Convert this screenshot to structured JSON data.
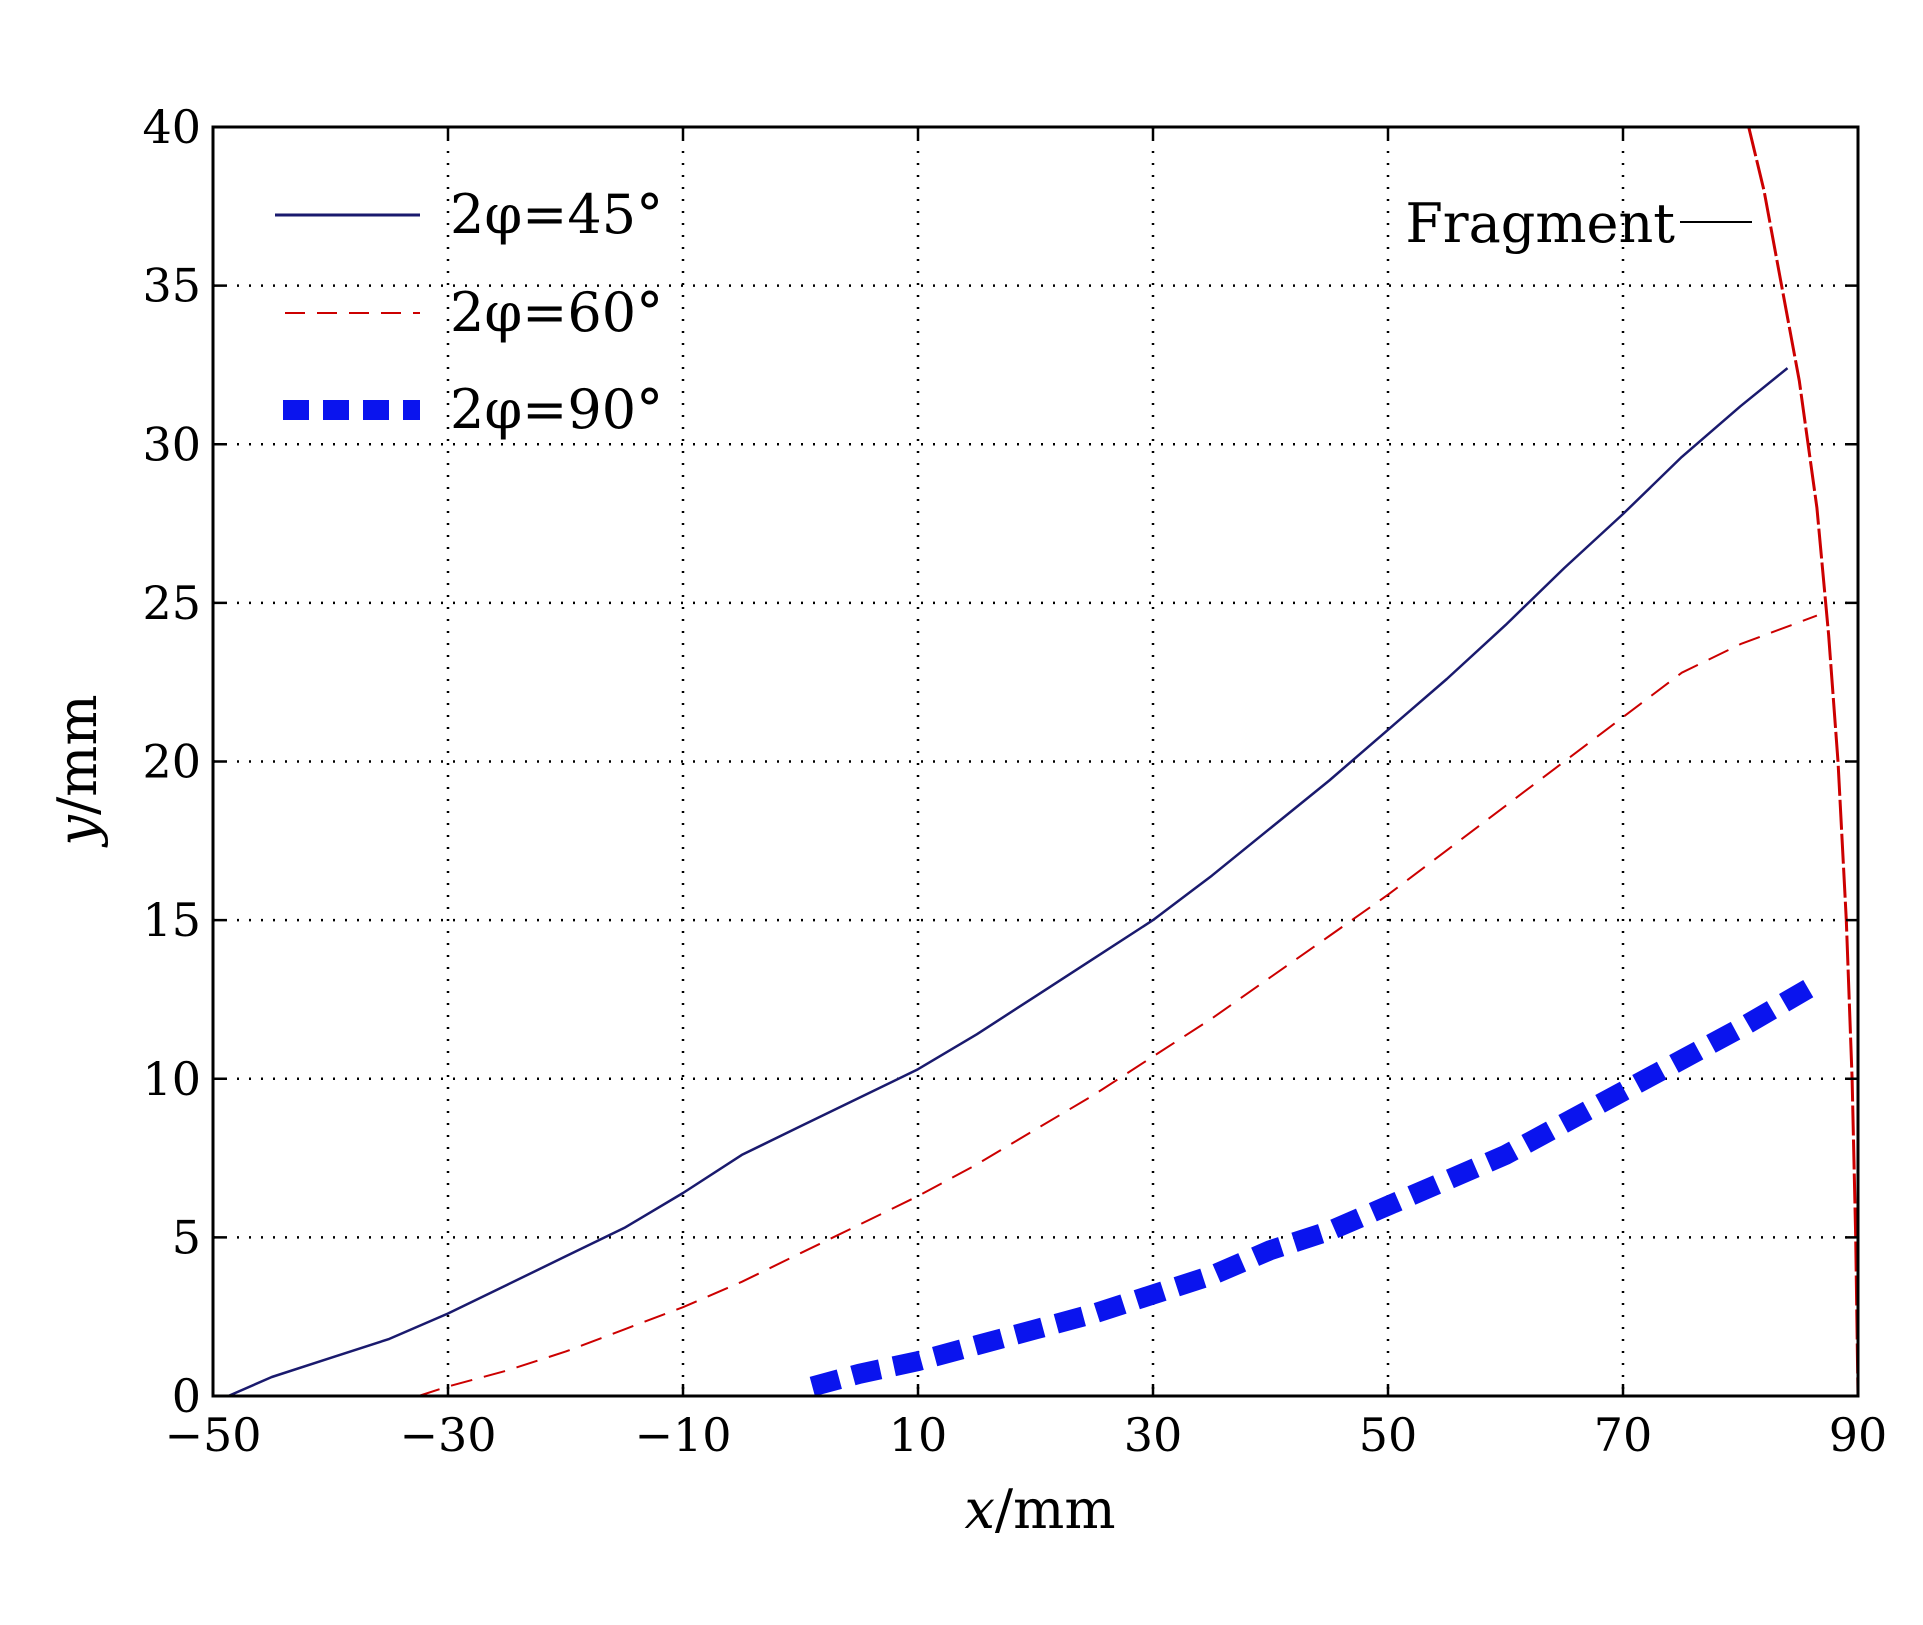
{
  "chart_data": {
    "type": "line",
    "title": "",
    "xlabel_var": "x",
    "xlabel_unit": "/mm",
    "ylabel_var": "y",
    "ylabel_unit": "/mm",
    "xlim": [
      -50,
      90
    ],
    "ylim": [
      0,
      40
    ],
    "xticks": [
      -50,
      -30,
      -10,
      10,
      30,
      50,
      70,
      90
    ],
    "xtick_labels": [
      "−50",
      "−30",
      "−10",
      "10",
      "30",
      "50",
      "70",
      "90"
    ],
    "yticks": [
      0,
      5,
      10,
      15,
      20,
      25,
      30,
      35,
      40
    ],
    "ytick_labels": [
      "0",
      "5",
      "10",
      "15",
      "20",
      "25",
      "30",
      "35",
      "40"
    ],
    "grid": true,
    "legend_position": "top-left",
    "series": [
      {
        "name": "2φ=45°",
        "color": "#1a1a6e",
        "style": "solid",
        "points": [
          [
            -48.7,
            0
          ],
          [
            -45,
            0.6
          ],
          [
            -40,
            1.2
          ],
          [
            -35,
            1.8
          ],
          [
            -30,
            2.6
          ],
          [
            -25,
            3.5
          ],
          [
            -20,
            4.4
          ],
          [
            -15,
            5.3
          ],
          [
            -10,
            6.4
          ],
          [
            -5,
            7.6
          ],
          [
            0,
            8.5
          ],
          [
            5,
            9.4
          ],
          [
            10,
            10.3
          ],
          [
            15,
            11.4
          ],
          [
            20,
            12.6
          ],
          [
            25,
            13.8
          ],
          [
            30,
            15.0
          ],
          [
            35,
            16.4
          ],
          [
            40,
            17.9
          ],
          [
            45,
            19.4
          ],
          [
            50,
            21.0
          ],
          [
            55,
            22.6
          ],
          [
            60,
            24.3
          ],
          [
            65,
            26.1
          ],
          [
            70,
            27.8
          ],
          [
            75,
            29.6
          ],
          [
            80,
            31.2
          ],
          [
            84,
            32.4
          ]
        ]
      },
      {
        "name": "2φ=60°",
        "color": "#cc0000",
        "style": "dashed",
        "points": [
          [
            -32.5,
            0
          ],
          [
            -30,
            0.3
          ],
          [
            -25,
            0.8
          ],
          [
            -20,
            1.4
          ],
          [
            -15,
            2.1
          ],
          [
            -10,
            2.8
          ],
          [
            -5,
            3.6
          ],
          [
            0,
            4.5
          ],
          [
            5,
            5.4
          ],
          [
            10,
            6.3
          ],
          [
            15,
            7.3
          ],
          [
            20,
            8.4
          ],
          [
            25,
            9.5
          ],
          [
            30,
            10.7
          ],
          [
            35,
            11.9
          ],
          [
            40,
            13.2
          ],
          [
            45,
            14.5
          ],
          [
            50,
            15.8
          ],
          [
            55,
            17.2
          ],
          [
            60,
            18.6
          ],
          [
            65,
            20.0
          ],
          [
            70,
            21.4
          ],
          [
            75,
            22.8
          ],
          [
            80,
            23.7
          ],
          [
            86.5,
            24.6
          ]
        ]
      },
      {
        "name": "2φ=90°",
        "color": "#0a14ee",
        "style": "thick-dashed",
        "points": [
          [
            1,
            0.3
          ],
          [
            5,
            0.7
          ],
          [
            10,
            1.1
          ],
          [
            15,
            1.6
          ],
          [
            20,
            2.1
          ],
          [
            25,
            2.6
          ],
          [
            30,
            3.2
          ],
          [
            35,
            3.8
          ],
          [
            40,
            4.6
          ],
          [
            45,
            5.2
          ],
          [
            50,
            6.0
          ],
          [
            55,
            6.8
          ],
          [
            60,
            7.6
          ],
          [
            65,
            8.6
          ],
          [
            70,
            9.6
          ],
          [
            75,
            10.6
          ],
          [
            80,
            11.6
          ],
          [
            86.5,
            13.0
          ]
        ]
      },
      {
        "name": "Fragment",
        "color": "#cc0000",
        "style": "dash-boundary",
        "points": [
          [
            80.7,
            40
          ],
          [
            82,
            38
          ],
          [
            83.5,
            35
          ],
          [
            85,
            32
          ],
          [
            86.5,
            28
          ],
          [
            87.5,
            24
          ],
          [
            88.3,
            20
          ],
          [
            89,
            15
          ],
          [
            89.5,
            10
          ],
          [
            89.8,
            5
          ],
          [
            90,
            0
          ]
        ]
      }
    ],
    "annotations": [
      {
        "text": "Fragment",
        "target": "Fragment"
      }
    ]
  }
}
